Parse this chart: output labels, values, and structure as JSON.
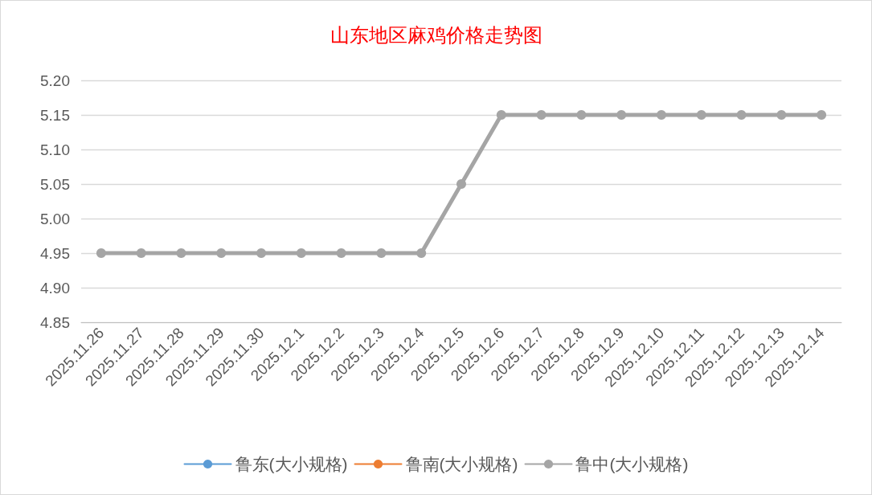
{
  "chart_data": {
    "type": "line",
    "title": "山东地区麻鸡价格走势图",
    "categories": [
      "2025.11.26",
      "2025.11.27",
      "2025.11.28",
      "2025.11.29",
      "2025.11.30",
      "2025.12.1",
      "2025.12.2",
      "2025.12.3",
      "2025.12.4",
      "2025.12.5",
      "2025.12.6",
      "2025.12.7",
      "2025.12.8",
      "2025.12.9",
      "2025.12.10",
      "2025.12.11",
      "2025.12.12",
      "2025.12.13",
      "2025.12.14"
    ],
    "series": [
      {
        "name": "鲁东(大小规格)",
        "color": "#5b9bd5",
        "values": [
          null,
          null,
          null,
          null,
          null,
          null,
          null,
          null,
          null,
          null,
          null,
          null,
          null,
          null,
          null,
          null,
          null,
          null,
          null
        ]
      },
      {
        "name": "鲁南(大小规格)",
        "color": "#ed7d31",
        "values": [
          null,
          null,
          null,
          null,
          null,
          null,
          null,
          null,
          null,
          null,
          null,
          null,
          null,
          null,
          null,
          null,
          null,
          null,
          null
        ]
      },
      {
        "name": "鲁中(大小规格)",
        "color": "#a5a5a5",
        "values": [
          4.95,
          4.95,
          4.95,
          4.95,
          4.95,
          4.95,
          4.95,
          4.95,
          4.95,
          5.05,
          5.15,
          5.15,
          5.15,
          5.15,
          5.15,
          5.15,
          5.15,
          5.15,
          5.15
        ]
      }
    ],
    "ylim": [
      4.85,
      5.2
    ],
    "yticks": [
      4.85,
      {
        "value": 4.9,
        "label": "4.90"
      },
      4.95,
      {
        "value": 5.0,
        "label": "5.00"
      },
      5.05,
      {
        "value": 5.1,
        "label": "5.10"
      },
      5.15,
      {
        "value": 5.2,
        "label": "5.20"
      }
    ],
    "grid": "y",
    "legend": "bottom",
    "marker": "circle",
    "line_style": "solid"
  }
}
